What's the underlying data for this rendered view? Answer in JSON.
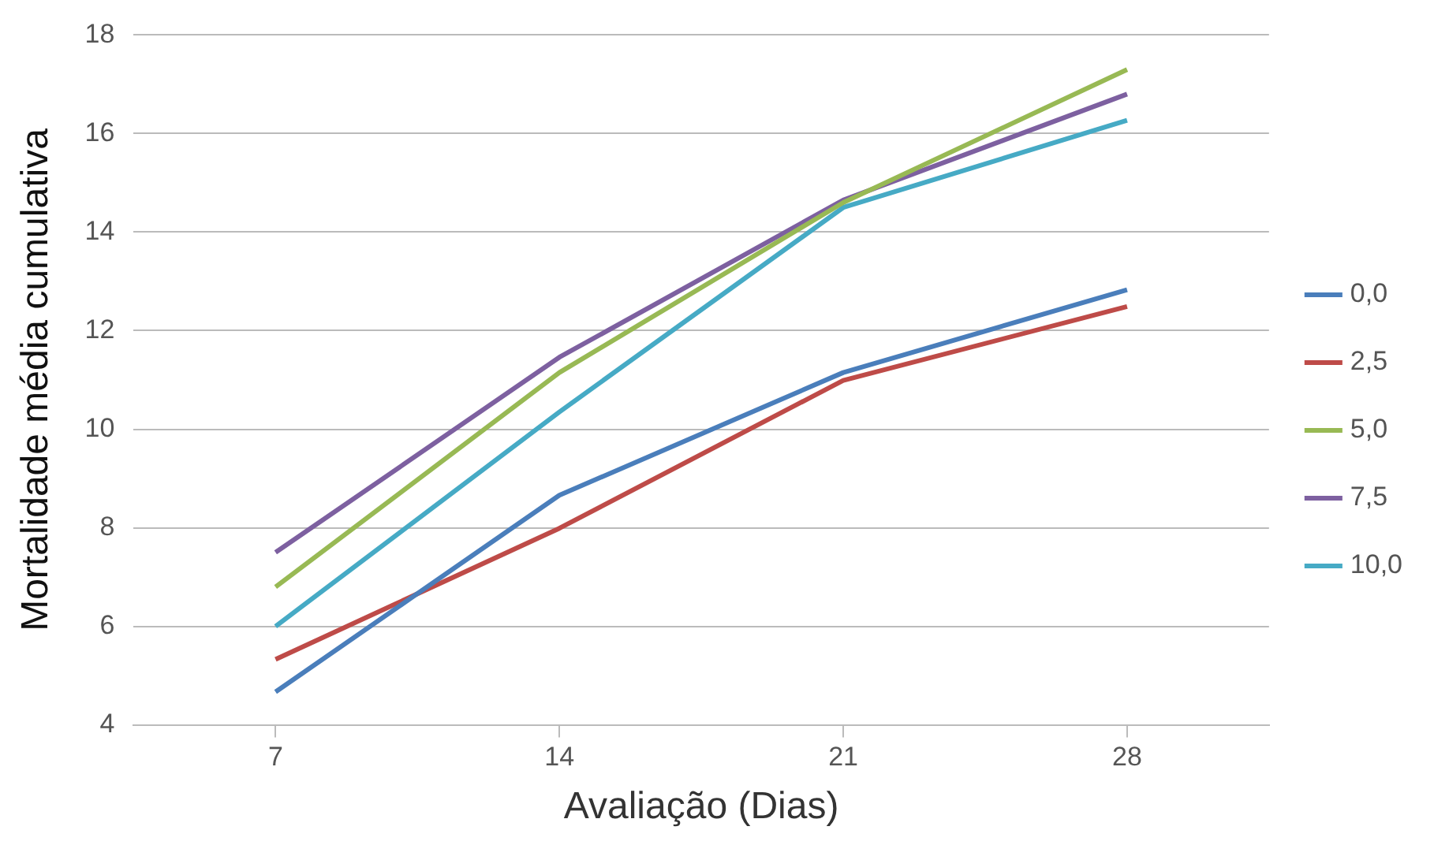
{
  "chart_data": {
    "type": "line",
    "xlabel": "Avaliação (Dias)",
    "ylabel": "Mortalidade média cumulativa",
    "categories": [
      "7",
      "14",
      "21",
      "28"
    ],
    "series": [
      {
        "name": "0,0",
        "color": "#4a7ebb",
        "values": [
          4.67,
          8.66,
          11.15,
          12.83
        ]
      },
      {
        "name": "2,5",
        "color": "#be4b48",
        "values": [
          5.33,
          7.99,
          10.99,
          12.49
        ]
      },
      {
        "name": "5,0",
        "color": "#98b954",
        "values": [
          6.8,
          11.15,
          14.6,
          17.3
        ]
      },
      {
        "name": "7,5",
        "color": "#7d60a0",
        "values": [
          7.5,
          11.46,
          14.65,
          16.8
        ]
      },
      {
        "name": "10,0",
        "color": "#46aac5",
        "values": [
          6.0,
          10.35,
          14.5,
          16.27
        ]
      }
    ],
    "ylim": [
      4,
      18
    ],
    "yticks": [
      4,
      6,
      8,
      10,
      12,
      14,
      16,
      18
    ],
    "grid": "y",
    "legend": "right",
    "marker": "none",
    "line_style": "solid"
  }
}
